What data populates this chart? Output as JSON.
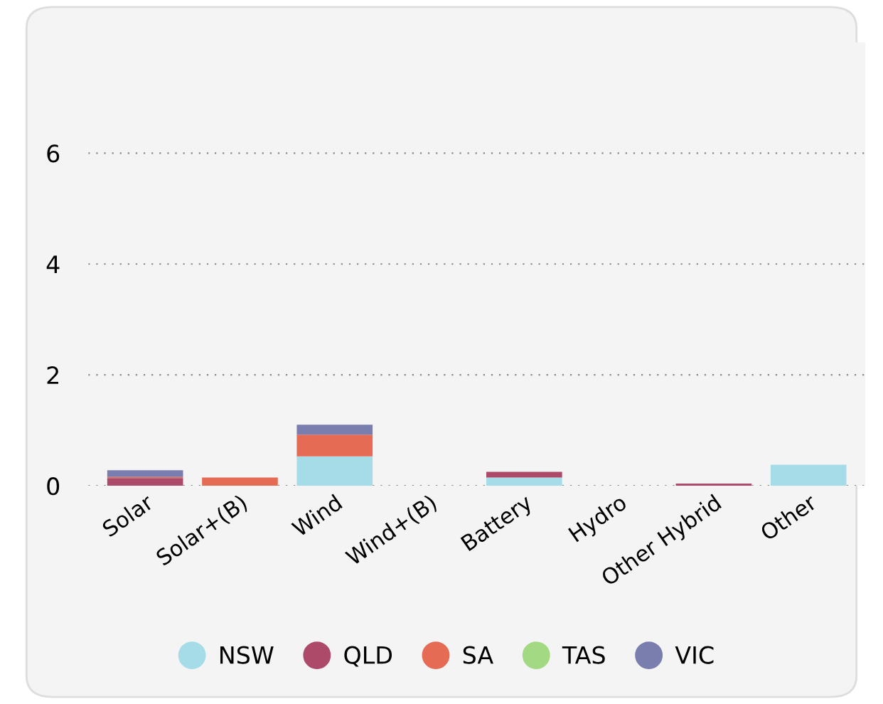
{
  "chart_data": {
    "type": "bar",
    "stacked": true,
    "categories": [
      "Solar",
      "Solar+(B)",
      "Wind",
      "Wind+(B)",
      "Battery",
      "Hydro",
      "Other Hybrid",
      "Other"
    ],
    "series": [
      {
        "name": "NSW",
        "color": "#a6dce8",
        "values": [
          0,
          0,
          0.53,
          0,
          0.15,
          0,
          0,
          0.38
        ]
      },
      {
        "name": "QLD",
        "color": "#ad4a6a",
        "values": [
          0.14,
          0,
          0,
          0,
          0.1,
          0,
          0.04,
          0
        ]
      },
      {
        "name": "SA",
        "color": "#e66b55",
        "values": [
          0.02,
          0.15,
          0.39,
          0,
          0,
          0,
          0,
          0
        ]
      },
      {
        "name": "TAS",
        "color": "#a3d982",
        "values": [
          0,
          0,
          0,
          0,
          0,
          0,
          0,
          0
        ]
      },
      {
        "name": "VIC",
        "color": "#7a7eae",
        "values": [
          0.12,
          0,
          0.18,
          0,
          0,
          0,
          0,
          0
        ]
      }
    ],
    "ylim": [
      0,
      8
    ],
    "yticks": [
      0,
      2,
      4,
      6
    ],
    "grid": "y",
    "legend": "bottom"
  }
}
